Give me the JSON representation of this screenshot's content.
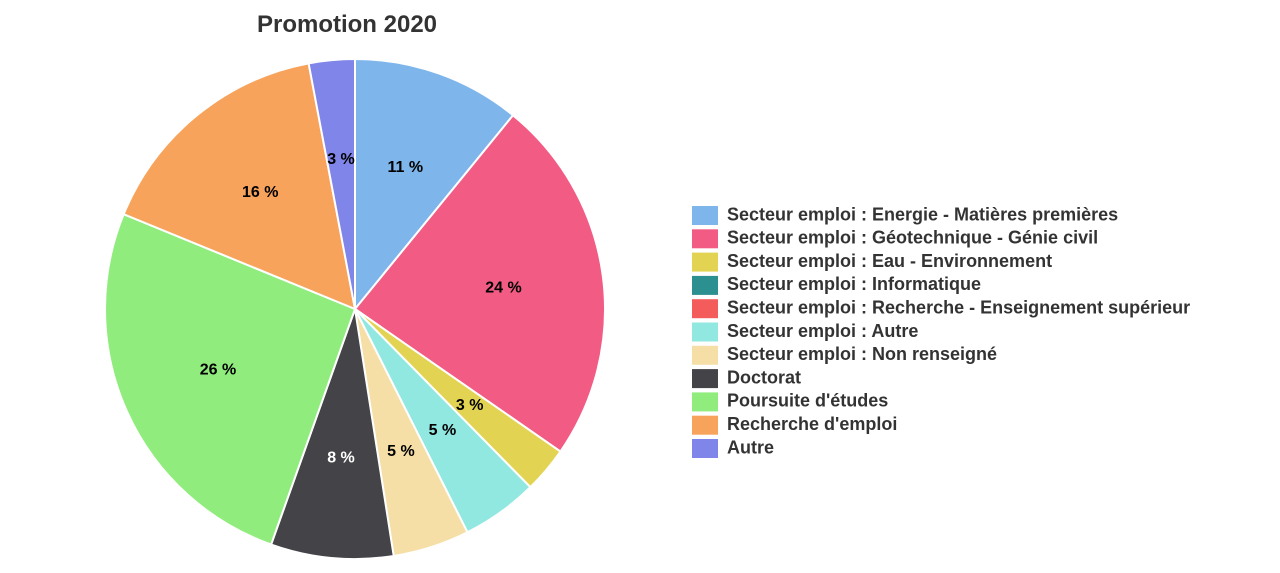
{
  "chart_data": {
    "type": "pie",
    "title": "Promotion 2020",
    "legend_position": "right",
    "slices": [
      {
        "label": "Secteur emploi : Energie - Matières premières",
        "value": 11,
        "display": "11 %",
        "color": "#7eb5eb",
        "label_color": "#000000"
      },
      {
        "label": "Secteur emploi : Géotechnique - Génie civil",
        "value": 24,
        "display": "24 %",
        "color": "#f25c84",
        "label_color": "#000000"
      },
      {
        "label": "Secteur emploi : Eau - Environnement",
        "value": 3,
        "display": "3 %",
        "color": "#e2d452",
        "label_color": "#000000"
      },
      {
        "label": "Secteur emploi : Informatique",
        "value": 0,
        "display": "",
        "color": "#2b908f",
        "label_color": "#000000"
      },
      {
        "label": "Secteur emploi : Recherche - Enseignement supérieur",
        "value": 0,
        "display": "",
        "color": "#f45b5b",
        "label_color": "#000000"
      },
      {
        "label": "Secteur emploi : Autre",
        "value": 5,
        "display": "5 %",
        "color": "#91e8e1",
        "label_color": "#000000"
      },
      {
        "label": "Secteur emploi : Non renseigné",
        "value": 5,
        "display": "5 %",
        "color": "#f5dfa6",
        "label_color": "#000000"
      },
      {
        "label": "Doctorat",
        "value": 8,
        "display": "8 %",
        "color": "#434348",
        "label_color": "#ffffff"
      },
      {
        "label": "Poursuite d'études",
        "value": 26,
        "display": "26 %",
        "color": "#90ed7d",
        "label_color": "#000000"
      },
      {
        "label": "Recherche d'emploi",
        "value": 16,
        "display": "16 %",
        "color": "#f7a35c",
        "label_color": "#000000"
      },
      {
        "label": "Autre",
        "value": 3,
        "display": "3 %",
        "color": "#8085e9",
        "label_color": "#000000"
      }
    ]
  }
}
